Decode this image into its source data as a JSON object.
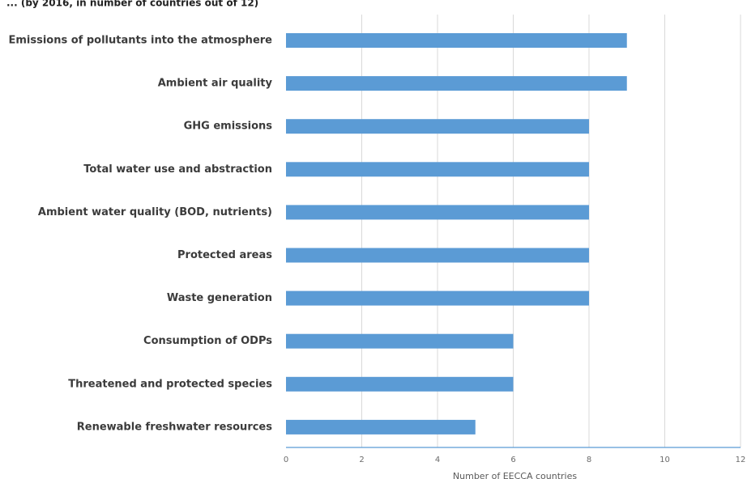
{
  "top_text": "... (by 2016, in number of countries out of 12)",
  "chart_data": {
    "type": "bar",
    "orientation": "horizontal",
    "categories": [
      "Emissions of pollutants into the atmosphere",
      "Ambient air quality",
      "GHG emissions",
      "Total water use and abstraction",
      "Ambient water quality (BOD, nutrients)",
      "Protected areas",
      "Waste generation",
      "Consumption of ODPs",
      "Threatened and protected species",
      "Renewable freshwater resources"
    ],
    "values": [
      9,
      9,
      8,
      8,
      8,
      8,
      8,
      6,
      6,
      5
    ],
    "xlabel": "Number of EECCA countries",
    "ylabel": "",
    "xlim": [
      0,
      12
    ],
    "xticks": [
      "0",
      "2",
      "4",
      "6",
      "8",
      "10",
      "12"
    ],
    "grid": "vertical",
    "legend": "none"
  },
  "colors": {
    "bar": "#5b9bd5",
    "grid": "#d9d9d9",
    "axis": "#5b9bd5"
  }
}
